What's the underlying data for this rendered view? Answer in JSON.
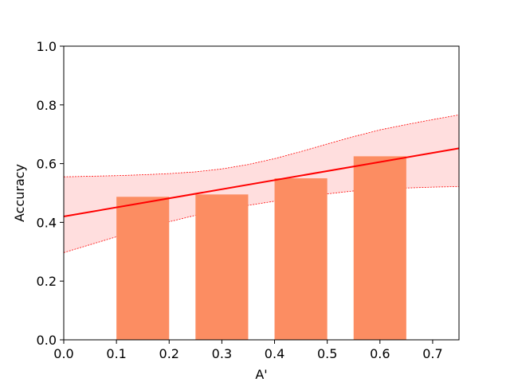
{
  "chart_data": {
    "type": "bar",
    "title": "",
    "xlabel": "A'",
    "ylabel": "Accuracy",
    "xlim": [
      0.0,
      0.75
    ],
    "ylim": [
      0.0,
      1.0
    ],
    "x_ticks": [
      "0.0",
      "0.1",
      "0.2",
      "0.3",
      "0.4",
      "0.5",
      "0.6",
      "0.7"
    ],
    "y_ticks": [
      "0.0",
      "0.2",
      "0.4",
      "0.6",
      "0.8",
      "1.0"
    ],
    "grid": false,
    "bars": [
      {
        "x_start": 0.1,
        "x_end": 0.2,
        "value": 0.487
      },
      {
        "x_start": 0.25,
        "x_end": 0.35,
        "value": 0.495
      },
      {
        "x_start": 0.4,
        "x_end": 0.5,
        "value": 0.55
      },
      {
        "x_start": 0.55,
        "x_end": 0.65,
        "value": 0.625
      }
    ],
    "trend_line": {
      "x": [
        0.0,
        0.75
      ],
      "y": [
        0.42,
        0.652
      ]
    },
    "confidence_band": {
      "x": [
        0.0,
        0.05,
        0.1,
        0.15,
        0.2,
        0.25,
        0.3,
        0.35,
        0.4,
        0.45,
        0.5,
        0.55,
        0.6,
        0.65,
        0.7,
        0.75
      ],
      "upper": [
        0.555,
        0.557,
        0.559,
        0.562,
        0.566,
        0.572,
        0.582,
        0.597,
        0.617,
        0.641,
        0.667,
        0.692,
        0.715,
        0.733,
        0.75,
        0.766
      ],
      "lower": [
        0.297,
        0.324,
        0.351,
        0.377,
        0.402,
        0.424,
        0.443,
        0.458,
        0.472,
        0.485,
        0.497,
        0.507,
        0.513,
        0.517,
        0.52,
        0.522
      ]
    },
    "colors": {
      "bar": "#fc8d62",
      "line": "#ff0000",
      "band_fill": "#ffdede",
      "band_edge": "#ff0000"
    }
  }
}
